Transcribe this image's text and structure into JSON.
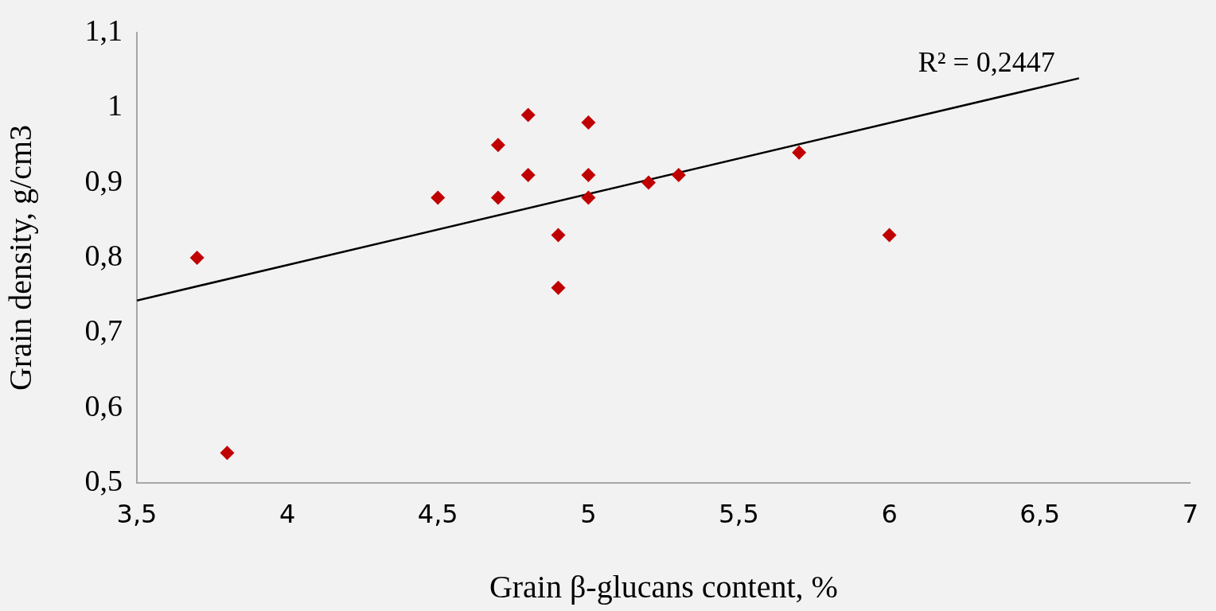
{
  "chart_data": {
    "type": "scatter",
    "xlabel": "Grain β-glucans content, %",
    "ylabel": "Grain density, g/cm3",
    "marker": "diamond",
    "grid": false,
    "legend": false,
    "xlim": [
      3.5,
      7
    ],
    "xticks": [
      {
        "value": 3.5,
        "label": "3,5"
      },
      {
        "value": 4,
        "label": "4"
      },
      {
        "value": 4.5,
        "label": "4,5"
      },
      {
        "value": 5,
        "label": "5"
      },
      {
        "value": 5.5,
        "label": "5,5"
      },
      {
        "value": 6,
        "label": "6"
      },
      {
        "value": 6.5,
        "label": "6,5"
      },
      {
        "value": 7,
        "label": "7"
      }
    ],
    "ylim": [
      0.5,
      1.1
    ],
    "yticks": [
      {
        "value": 0.5,
        "label": "0,5"
      },
      {
        "value": 0.6,
        "label": "0,6"
      },
      {
        "value": 0.7,
        "label": "0,7"
      },
      {
        "value": 0.8,
        "label": "0,8"
      },
      {
        "value": 0.9,
        "label": "0,9"
      },
      {
        "value": 1,
        "label": "1"
      },
      {
        "value": 1.1,
        "label": "1,1"
      }
    ],
    "annotations": [
      "R² = 0,2447"
    ],
    "series": [
      {
        "color": "#c00000",
        "x": [
          3.7,
          3.8,
          4.5,
          4.7,
          4.7,
          4.8,
          4.8,
          4.9,
          4.9,
          5.0,
          5.0,
          5.0,
          5.2,
          5.3,
          5.7,
          6.0
        ],
        "values": [
          0.8,
          0.54,
          0.88,
          0.95,
          0.88,
          0.99,
          0.91,
          0.83,
          0.76,
          0.98,
          0.91,
          0.88,
          0.9,
          0.91,
          0.94,
          0.83
        ]
      },
      {
        "type": "line",
        "color": "#000000",
        "marker": "none",
        "x": [
          3.5,
          6.63
        ],
        "values": [
          0.743,
          1.039
        ]
      }
    ]
  }
}
